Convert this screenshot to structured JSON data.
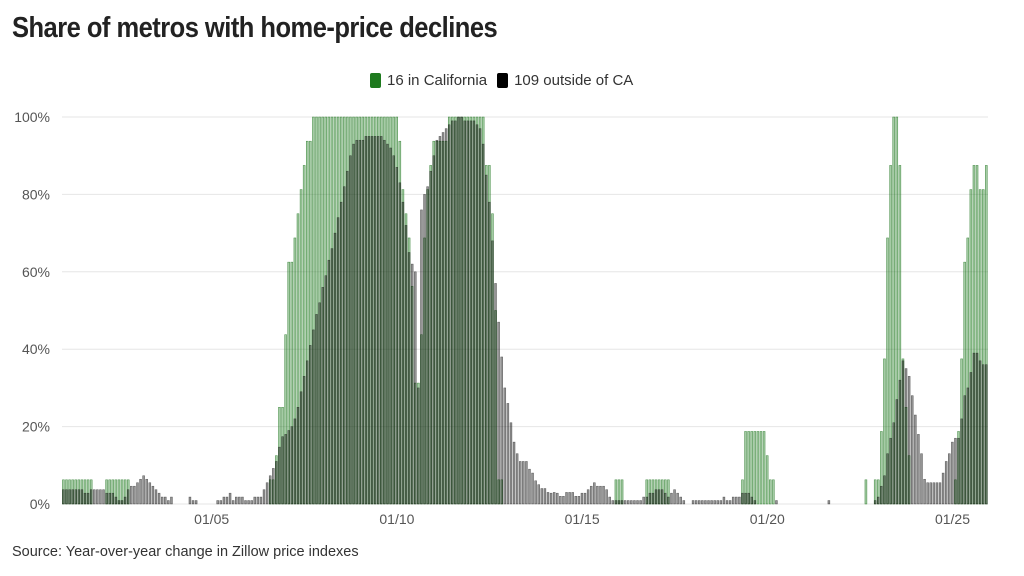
{
  "chart_data": {
    "type": "bar",
    "title": "Share of metros with home-price declines",
    "source": "Source: Year-over-year change in Zillow price indexes",
    "x_start": "2001-01",
    "x_interval": "month",
    "x_ticks": [
      "01/05",
      "01/10",
      "01/15",
      "01/20",
      "01/25"
    ],
    "y_ticks": [
      "0%",
      "20%",
      "40%",
      "60%",
      "80%",
      "100%"
    ],
    "ylim": [
      0,
      100
    ],
    "grid": true,
    "legend_position": "top-center",
    "series": [
      {
        "name": "16 in California",
        "color": "#1e7a1e",
        "values": [
          6.25,
          6.25,
          6.25,
          6.25,
          6.25,
          6.25,
          6.25,
          6.25,
          6.25,
          6.25,
          0,
          0,
          0,
          0,
          6.25,
          6.25,
          6.25,
          6.25,
          6.25,
          6.25,
          6.25,
          6.25,
          0,
          0,
          0,
          0,
          0,
          0,
          0,
          0,
          0,
          0,
          0,
          0,
          0,
          0,
          0,
          0,
          0,
          0,
          0,
          0,
          0,
          0,
          0,
          0,
          0,
          0,
          0,
          0,
          0,
          0,
          0,
          0,
          0,
          0,
          0,
          0,
          0,
          0,
          0,
          0,
          0,
          0,
          0,
          0,
          0,
          6.25,
          6.25,
          12.5,
          25,
          25,
          43.75,
          62.5,
          62.5,
          68.75,
          75,
          81.25,
          87.5,
          93.75,
          93.75,
          100,
          100,
          100,
          100,
          100,
          100,
          100,
          100,
          100,
          100,
          100,
          100,
          100,
          100,
          100,
          100,
          100,
          100,
          100,
          100,
          100,
          100,
          100,
          100,
          100,
          100,
          100,
          100,
          93.75,
          81.25,
          75,
          68.75,
          56.25,
          31.25,
          31.25,
          43.75,
          68.75,
          81.25,
          87.5,
          93.75,
          93.75,
          93.75,
          93.75,
          93.75,
          100,
          100,
          100,
          100,
          100,
          100,
          100,
          100,
          100,
          100,
          100,
          100,
          87.5,
          87.5,
          75,
          50,
          6.25,
          6.25,
          0,
          0,
          0,
          0,
          0,
          0,
          0,
          0,
          0,
          0,
          0,
          0,
          0,
          0,
          0,
          0,
          0,
          0,
          0,
          0,
          0,
          0,
          0,
          0,
          0,
          0,
          0,
          0,
          0,
          0,
          0,
          0,
          0,
          0,
          0,
          0,
          6.25,
          6.25,
          6.25,
          0,
          0,
          0,
          0,
          0,
          0,
          0,
          6.25,
          6.25,
          6.25,
          6.25,
          6.25,
          6.25,
          6.25,
          6.25,
          0,
          0,
          0,
          0,
          0,
          0,
          0,
          0,
          0,
          0,
          0,
          0,
          0,
          0,
          0,
          0,
          0,
          0,
          0,
          0,
          0,
          0,
          0,
          6.25,
          18.75,
          18.75,
          18.75,
          18.75,
          18.75,
          18.75,
          18.75,
          12.5,
          6.25,
          6.25,
          0,
          0,
          0,
          0,
          0,
          0,
          0,
          0,
          0,
          0,
          0,
          0,
          0,
          0,
          0,
          0,
          0,
          0,
          0,
          0,
          0,
          0,
          0,
          0,
          0,
          0,
          0,
          0,
          0,
          6.25,
          0,
          0,
          6.25,
          6.25,
          18.75,
          37.5,
          68.75,
          87.5,
          100,
          100,
          87.5,
          37.5,
          25,
          12.5,
          0,
          0,
          0,
          0,
          0,
          0,
          0,
          0,
          0,
          0,
          0,
          0,
          0,
          0,
          6.25,
          18.75,
          37.5,
          62.5,
          68.75,
          81.25,
          87.5,
          87.5,
          81.25,
          81.25,
          87.5
        ]
      },
      {
        "name": "109 outside of CA",
        "color": "#000000",
        "values": [
          3.7,
          3.7,
          3.7,
          3.7,
          3.7,
          3.7,
          3.7,
          2.8,
          2.8,
          3.7,
          3.7,
          3.7,
          3.7,
          3.7,
          2.8,
          2.8,
          2.8,
          1.8,
          0.9,
          0.9,
          1.8,
          3.7,
          4.6,
          4.6,
          5.5,
          6.4,
          7.3,
          6.4,
          5.5,
          4.6,
          3.7,
          2.8,
          1.8,
          1.8,
          0.9,
          1.8,
          0,
          0,
          0,
          0,
          0,
          1.8,
          0.9,
          0.9,
          0,
          0,
          0,
          0,
          0,
          0,
          0.9,
          0.9,
          1.8,
          1.8,
          2.8,
          0.9,
          1.8,
          1.8,
          1.8,
          0.9,
          0.9,
          0.9,
          1.8,
          1.8,
          1.8,
          3.7,
          5.5,
          7.3,
          9.2,
          11,
          14.7,
          17.4,
          18,
          19,
          20,
          22,
          25,
          29,
          33,
          37,
          41,
          45,
          49,
          52,
          56,
          59,
          63,
          66,
          70,
          74,
          78,
          82,
          86,
          90,
          93,
          94,
          94,
          94,
          95,
          95,
          95,
          95,
          95,
          95,
          94,
          93,
          92,
          90,
          87,
          83,
          78,
          72,
          65,
          62,
          60,
          30,
          76,
          80,
          82,
          86,
          90,
          94,
          95,
          96,
          97,
          98,
          99,
          99,
          100,
          100,
          99,
          99,
          99,
          99,
          98,
          97,
          93,
          85,
          78,
          68,
          57,
          47,
          38,
          30,
          26,
          21,
          16,
          13,
          11,
          11,
          11,
          9,
          8,
          6,
          5,
          4,
          4,
          3,
          2.8,
          3,
          2.8,
          2,
          2,
          3,
          3,
          3,
          2,
          2,
          2.8,
          2.8,
          3.7,
          4.6,
          5.5,
          4.6,
          4.6,
          4.6,
          3.7,
          1.8,
          0.9,
          0.9,
          0.9,
          0.9,
          0.9,
          0.9,
          0.9,
          0.9,
          0.9,
          0.9,
          1.8,
          1.8,
          2.8,
          2.8,
          3.7,
          3.7,
          3.7,
          2.8,
          1.8,
          2.8,
          3.7,
          2.8,
          1.8,
          0.9,
          0,
          0,
          0.9,
          0.9,
          0.9,
          0.9,
          0.9,
          0.9,
          0.9,
          0.9,
          0.9,
          0.9,
          1.8,
          0.9,
          0.9,
          1.8,
          1.8,
          1.8,
          2.8,
          2.8,
          2.8,
          1.8,
          0.9,
          0,
          0,
          0,
          0,
          0,
          0,
          0.9,
          0,
          0,
          0,
          0,
          0,
          0,
          0,
          0,
          0,
          0,
          0,
          0,
          0,
          0,
          0,
          0,
          0.9,
          0,
          0,
          0,
          0,
          0,
          0,
          0,
          0,
          0,
          0,
          0,
          0,
          0,
          0,
          0.9,
          1.8,
          4.6,
          7.3,
          13,
          17,
          21,
          27,
          32,
          37,
          35,
          33,
          28,
          23,
          18,
          13,
          6.4,
          5.5,
          5.5,
          5.5,
          5.5,
          5.5,
          8,
          11,
          13,
          16,
          17,
          17,
          22,
          28,
          30,
          34,
          39,
          39,
          37,
          36,
          36
        ]
      }
    ]
  }
}
